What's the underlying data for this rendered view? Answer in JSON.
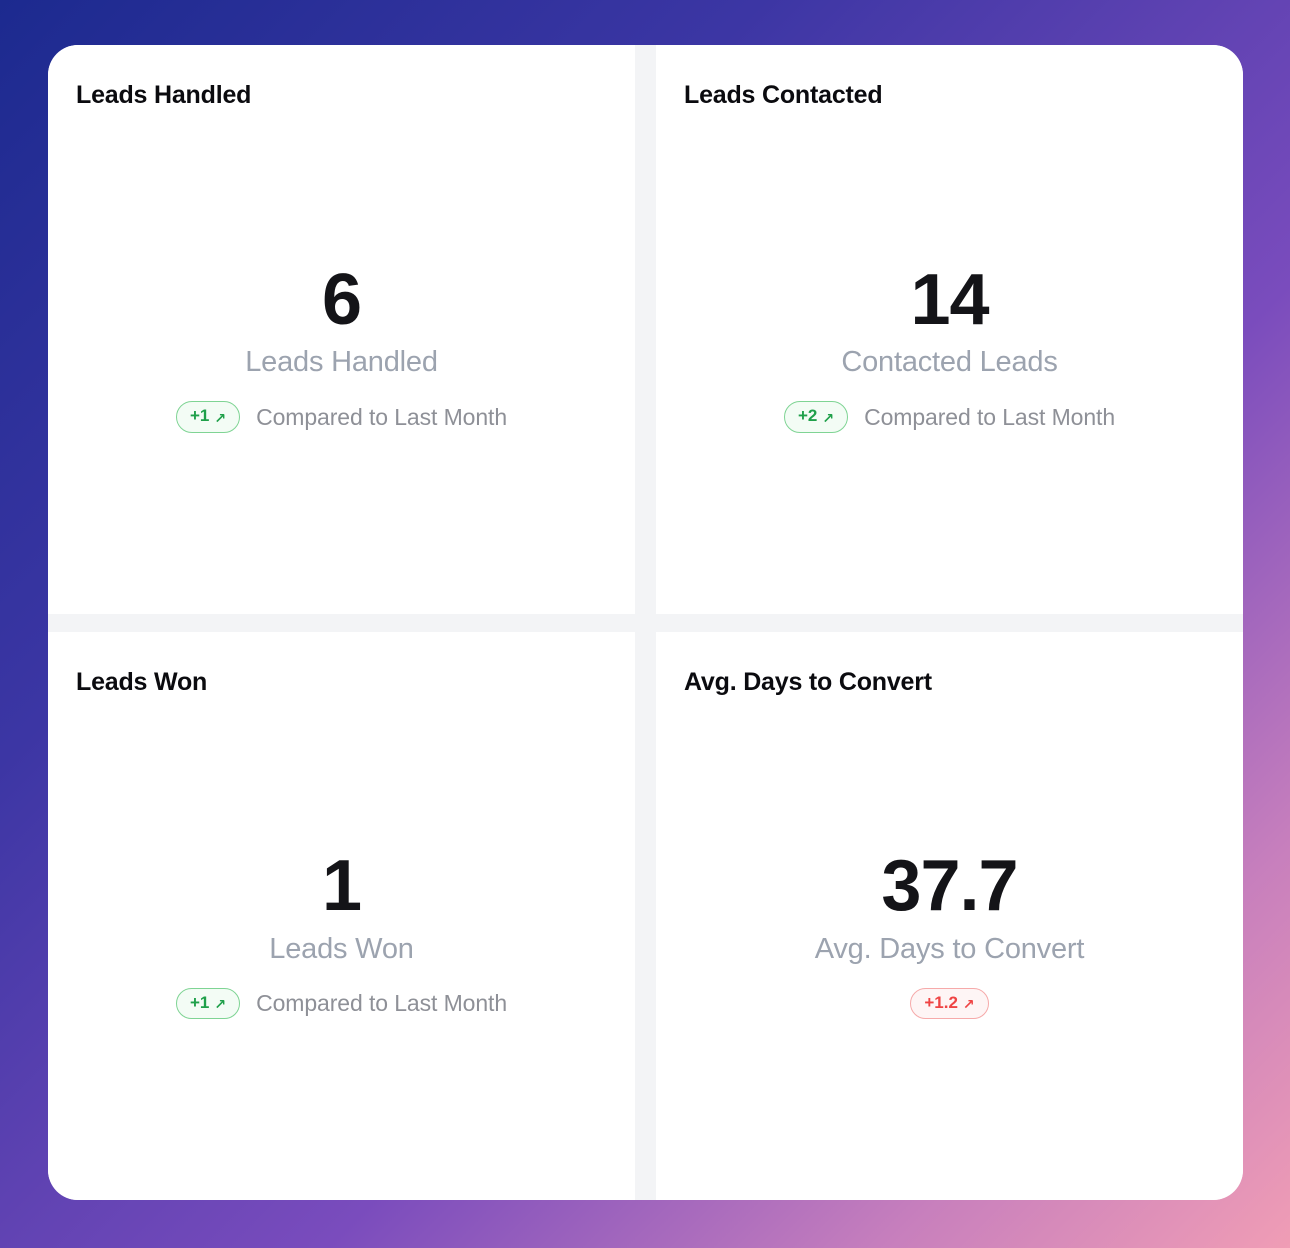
{
  "page": {
    "background_gradient": [
      "#1c2a8f",
      "#3c36a4",
      "#7a4cbd",
      "#f09db5"
    ],
    "surface_color": "#ffffff",
    "gutter_color": "#f3f4f6"
  },
  "colors": {
    "positive_text": "#1fa04a",
    "positive_border": "#7fd494",
    "positive_bg": "#f3fcf5",
    "negative_text": "#ef4444",
    "negative_border": "#f6aaaa",
    "negative_bg": "#fef5f5",
    "value_text": "#141418",
    "label_text": "#9ca3af",
    "comparison_text": "#8e9097"
  },
  "cards": [
    {
      "title": "Leads Handled",
      "value": "6",
      "label": "Leads Handled",
      "badge": {
        "text": "+1",
        "arrow": "↗",
        "type": "positive"
      },
      "comparison": "Compared to Last Month"
    },
    {
      "title": "Leads Contacted",
      "value": "14",
      "label": "Contacted Leads",
      "badge": {
        "text": "+2",
        "arrow": "↗",
        "type": "positive"
      },
      "comparison": "Compared to Last Month"
    },
    {
      "title": "Leads Won",
      "value": "1",
      "label": "Leads Won",
      "badge": {
        "text": "+1",
        "arrow": "↗",
        "type": "positive"
      },
      "comparison": "Compared to Last Month"
    },
    {
      "title": "Avg. Days to Convert",
      "value": "37.7",
      "label": "Avg. Days to Convert",
      "badge": {
        "text": "+1.2",
        "arrow": "↗",
        "type": "negative"
      },
      "comparison": ""
    }
  ]
}
